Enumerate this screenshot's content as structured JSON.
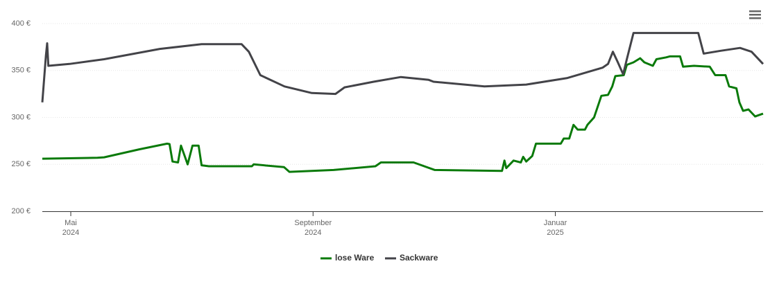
{
  "chart_data": {
    "type": "line",
    "xlim": [
      3.53,
      15.43
    ],
    "xticks": [
      {
        "value": 4,
        "label": "Mai\n2024"
      },
      {
        "value": 8,
        "label": "September\n2024"
      },
      {
        "value": 12,
        "label": "Januar\n2025"
      }
    ],
    "ylim": [
      200,
      400
    ],
    "yticks": [
      {
        "value": 200,
        "label": "200 €"
      },
      {
        "value": 250,
        "label": "250 €"
      },
      {
        "value": 300,
        "label": "300 €"
      },
      {
        "value": 350,
        "label": "350 €"
      },
      {
        "value": 400,
        "label": "400 €"
      }
    ],
    "grid": true,
    "legend": "bottom",
    "series": [
      {
        "name": "lose Ware",
        "color": "#0a7a0a",
        "x": [
          3.53,
          4.44,
          4.55,
          5.13,
          5.59,
          5.63,
          5.68,
          5.77,
          5.82,
          5.93,
          6.01,
          6.11,
          6.16,
          6.28,
          6.99,
          7.02,
          7.52,
          7.61,
          8.34,
          9.03,
          9.12,
          9.66,
          10.01,
          11.12,
          11.16,
          11.19,
          11.31,
          11.43,
          11.47,
          11.52,
          11.62,
          11.68,
          12.09,
          12.14,
          12.23,
          12.3,
          12.37,
          12.49,
          12.53,
          12.64,
          12.76,
          12.87,
          12.94,
          12.99,
          13.13,
          13.18,
          13.29,
          13.4,
          13.47,
          13.61,
          13.67,
          13.83,
          13.89,
          14.06,
          14.11,
          14.29,
          14.55,
          14.64,
          14.81,
          14.87,
          14.99,
          15.04,
          15.1,
          15.19,
          15.3,
          15.43
        ],
        "values": [
          256,
          257,
          257.5,
          266,
          272,
          271.6,
          253,
          252,
          270,
          250,
          270,
          270,
          249,
          248,
          248,
          250,
          247,
          242,
          244,
          248,
          252,
          252,
          244,
          243,
          254,
          246,
          254,
          252,
          258,
          253,
          259,
          272,
          272,
          277.5,
          277.5,
          292,
          287,
          287,
          292,
          300,
          323,
          324,
          333,
          344,
          345,
          356,
          358.7,
          363,
          358.7,
          355,
          362,
          364,
          365,
          365,
          354,
          355,
          354,
          345,
          345,
          333,
          331,
          316,
          307,
          308.5,
          301,
          304
        ]
      },
      {
        "name": "Sackware",
        "color": "#434348",
        "x": [
          3.53,
          3.59,
          3.61,
          3.63,
          3.98,
          4.55,
          5.47,
          6.16,
          6.82,
          6.94,
          7.13,
          7.53,
          7.98,
          8.37,
          8.52,
          9.0,
          9.45,
          9.91,
          9.99,
          10.83,
          11.52,
          12.2,
          12.78,
          12.87,
          12.95,
          13.03,
          13.12,
          13.18,
          13.29,
          14.36,
          14.45,
          14.73,
          15.05,
          15.24,
          15.43
        ],
        "values": [
          316,
          366,
          379,
          355,
          357,
          362,
          373,
          378,
          378,
          370,
          345,
          333,
          326,
          325,
          332,
          338,
          343,
          340,
          338,
          333,
          335,
          342,
          353,
          357,
          370,
          359,
          346,
          362,
          390,
          390,
          368,
          371,
          374,
          370,
          357
        ]
      }
    ]
  }
}
